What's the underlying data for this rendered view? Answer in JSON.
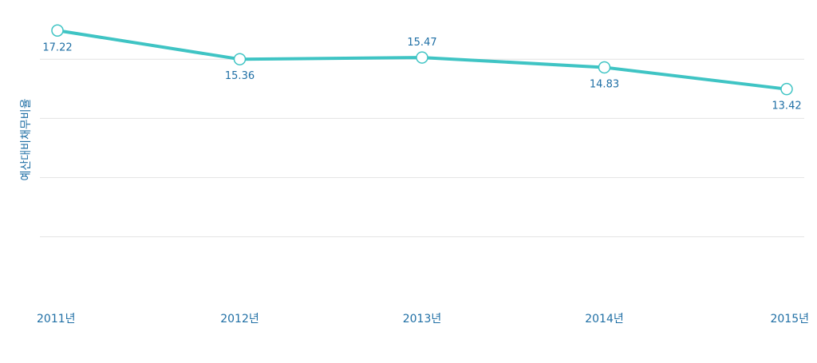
{
  "chart_data": {
    "type": "line",
    "categories": [
      "2011년",
      "2012년",
      "2013년",
      "2014년",
      "2015년"
    ],
    "series": [
      {
        "values": [
          17.22,
          15.36,
          15.47,
          14.83,
          13.42
        ]
      }
    ],
    "data_labels": [
      "17.22",
      "15.36",
      "15.47",
      "14.83",
      "13.42"
    ],
    "xlabel": "",
    "ylabel": "예산대비채무비율",
    "ylim": [
      0,
      19.2
    ],
    "grid": true,
    "colors": {
      "line": "#3fc4c4",
      "text": "#1f6fa5",
      "grid": "#e2e2e2"
    }
  }
}
